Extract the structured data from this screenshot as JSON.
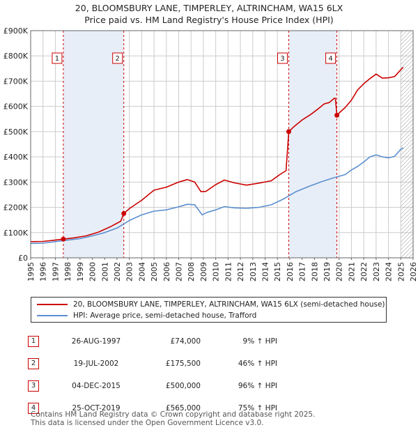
{
  "title_line1": "20, BLOOMSBURY LANE, TIMPERLEY, ALTRINCHAM, WA15 6LX",
  "title_line2": "Price paid vs. HM Land Registry's House Price Index (HPI)",
  "colors": {
    "property": "#cc0000",
    "hpi": "#5b8fd0",
    "band": "#e8eef7",
    "grid": "#cccccc",
    "hatch": "#999999"
  },
  "chart_data": {
    "type": "line",
    "title": "Price paid vs. HM Land Registry's House Price Index (HPI)",
    "xlabel": "",
    "ylabel": "",
    "xlim": [
      1995,
      2026
    ],
    "ylim": [
      0,
      900000
    ],
    "x_ticks": [
      1995,
      1996,
      1997,
      1998,
      1999,
      2000,
      2001,
      2002,
      2003,
      2004,
      2005,
      2006,
      2007,
      2008,
      2009,
      2010,
      2011,
      2012,
      2013,
      2014,
      2015,
      2016,
      2017,
      2018,
      2019,
      2020,
      2021,
      2022,
      2023,
      2024,
      2025,
      2026
    ],
    "y_ticks": [
      {
        "value": 0,
        "label": "£0"
      },
      {
        "value": 100000,
        "label": "£100K"
      },
      {
        "value": 200000,
        "label": "£200K"
      },
      {
        "value": 300000,
        "label": "£300K"
      },
      {
        "value": 400000,
        "label": "£400K"
      },
      {
        "value": 500000,
        "label": "£500K"
      },
      {
        "value": 600000,
        "label": "£600K"
      },
      {
        "value": 700000,
        "label": "£700K"
      },
      {
        "value": 800000,
        "label": "£800K"
      },
      {
        "value": 900000,
        "label": "£900K"
      }
    ],
    "grid": true,
    "forecast_from": 2025.0,
    "series": [
      {
        "name": "20, BLOOMSBURY LANE, TIMPERLEY, ALTRINCHAM, WA15 6LX (semi-detached house)",
        "color": "#cc0000",
        "x": [
          1995.0,
          1996.0,
          1997.0,
          1997.65,
          1998.5,
          1999.5,
          2000.5,
          2001.5,
          2002.3,
          2002.55,
          2003.0,
          2004.0,
          2005.0,
          2006.0,
          2007.0,
          2007.7,
          2008.3,
          2008.8,
          2009.2,
          2010.0,
          2010.7,
          2011.5,
          2012.5,
          2013.5,
          2014.5,
          2015.2,
          2015.7,
          2015.92,
          2016.3,
          2017.0,
          2017.7,
          2018.3,
          2018.8,
          2019.2,
          2019.6,
          2019.7,
          2019.82,
          2020.1,
          2020.5,
          2021.0,
          2021.5,
          2022.0,
          2022.5,
          2023.0,
          2023.5,
          2024.0,
          2024.5,
          2025.0,
          2025.2
        ],
        "values": [
          64000,
          65000,
          70000,
          74000,
          79000,
          87000,
          102000,
          124000,
          145000,
          175500,
          195000,
          228000,
          268000,
          280000,
          300000,
          310000,
          300000,
          262000,
          263000,
          290000,
          308000,
          297000,
          288000,
          296000,
          305000,
          330000,
          345000,
          500000,
          518000,
          546000,
          568000,
          590000,
          610000,
          615000,
          632000,
          632000,
          565000,
          578000,
          596000,
          625000,
          665000,
          690000,
          710000,
          728000,
          712000,
          713000,
          718000,
          745000,
          755000
        ]
      },
      {
        "name": "HPI: Average price, semi-detached house, Trafford",
        "color": "#5b8fd0",
        "x": [
          1995.0,
          1996.0,
          1997.0,
          1998.0,
          1999.0,
          2000.0,
          2001.0,
          2002.0,
          2003.0,
          2004.0,
          2005.0,
          2006.0,
          2007.0,
          2007.7,
          2008.3,
          2008.9,
          2009.3,
          2010.0,
          2010.7,
          2011.5,
          2012.5,
          2013.5,
          2014.5,
          2015.5,
          2016.5,
          2017.5,
          2018.5,
          2019.5,
          2020.5,
          2021.0,
          2021.5,
          2022.0,
          2022.5,
          2023.0,
          2023.5,
          2024.0,
          2024.5,
          2025.0,
          2025.2
        ],
        "values": [
          57000,
          58000,
          64000,
          70000,
          76000,
          87000,
          100000,
          118000,
          148000,
          170000,
          185000,
          190000,
          202000,
          212000,
          210000,
          170000,
          180000,
          190000,
          203000,
          198000,
          196000,
          200000,
          210000,
          233000,
          262000,
          282000,
          300000,
          316000,
          330000,
          348000,
          362000,
          380000,
          400000,
          408000,
          400000,
          396000,
          402000,
          430000,
          436000
        ]
      }
    ],
    "markers": [
      {
        "label": "1",
        "x": 1997.65,
        "value": 74000
      },
      {
        "label": "2",
        "x": 2002.55,
        "value": 175500
      },
      {
        "label": "3",
        "x": 2015.92,
        "value": 500000
      },
      {
        "label": "4",
        "x": 2019.82,
        "value": 565000
      }
    ],
    "legend_position": "below"
  },
  "legend": {
    "property": "20, BLOOMSBURY LANE, TIMPERLEY, ALTRINCHAM, WA15 6LX (semi-detached house)",
    "hpi": "HPI: Average price, semi-detached house, Trafford"
  },
  "sales": [
    {
      "num": "1",
      "date": "26-AUG-1997",
      "price": "£74,000",
      "hpi": "9% ↑ HPI"
    },
    {
      "num": "2",
      "date": "19-JUL-2002",
      "price": "£175,500",
      "hpi": "46% ↑ HPI"
    },
    {
      "num": "3",
      "date": "04-DEC-2015",
      "price": "£500,000",
      "hpi": "96% ↑ HPI"
    },
    {
      "num": "4",
      "date": "25-OCT-2019",
      "price": "£565,000",
      "hpi": "75% ↑ HPI"
    }
  ],
  "footer_line1": "Contains HM Land Registry data © Crown copyright and database right 2025.",
  "footer_line2": "This data is licensed under the Open Government Licence v3.0."
}
